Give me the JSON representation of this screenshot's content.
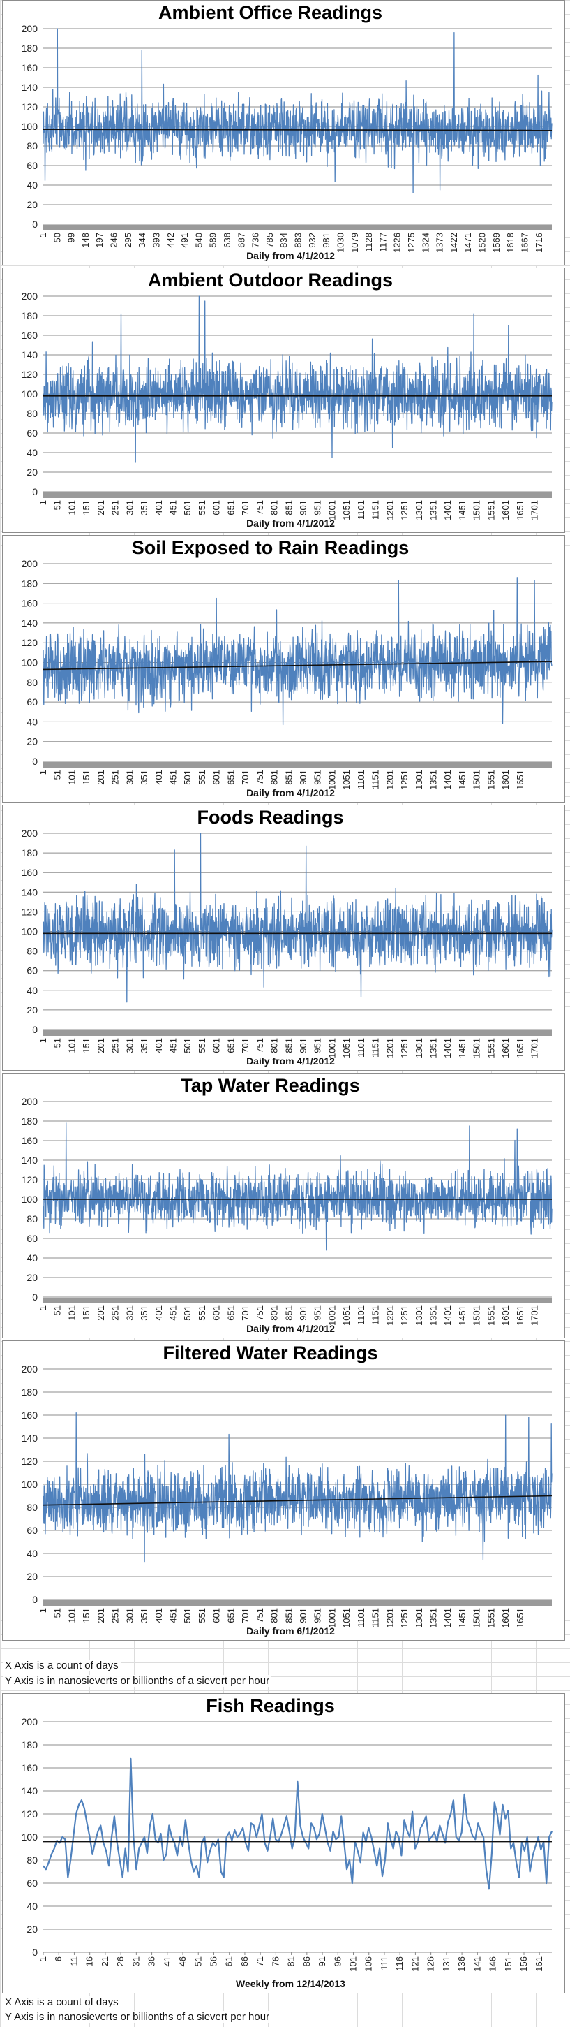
{
  "charts": [
    {
      "type": "line",
      "title": "Ambient Office Readings",
      "xlabel": "Daily from 4/1/2012",
      "ylabel": "",
      "ylim": [
        0,
        200
      ],
      "yticks": [
        0,
        20,
        40,
        60,
        80,
        100,
        120,
        140,
        160,
        180,
        200
      ],
      "xlim": [
        1,
        1760
      ],
      "xtick_start": 1,
      "xtick_step": 49,
      "xtick_end": 1716,
      "series_color": "#4f81bd",
      "trend": [
        97,
        96
      ],
      "baseline": 96,
      "noise_amplitude": 22,
      "spikes": [
        [
          50,
          200
        ],
        [
          342,
          178
        ],
        [
          1422,
          196
        ],
        [
          1280,
          32
        ],
        [
          1373,
          35
        ],
        [
          148,
          55
        ]
      ]
    },
    {
      "type": "line",
      "title": "Ambient Outdoor Readings",
      "xlabel": "Daily from 4/1/2012",
      "ylabel": "",
      "ylim": [
        0,
        200
      ],
      "yticks": [
        0,
        20,
        40,
        60,
        80,
        100,
        120,
        140,
        160,
        180,
        200
      ],
      "xlim": [
        1,
        1760
      ],
      "xtick_start": 1,
      "xtick_step": 50,
      "xtick_end": 1701,
      "series_color": "#4f81bd",
      "trend": [
        98,
        98
      ],
      "baseline": 98,
      "noise_amplitude": 24,
      "spikes": [
        [
          270,
          182
        ],
        [
          540,
          200
        ],
        [
          560,
          195
        ],
        [
          320,
          30
        ],
        [
          1000,
          35
        ],
        [
          1490,
          182
        ],
        [
          1610,
          170
        ]
      ]
    },
    {
      "type": "line",
      "title": "Soil Exposed to Rain Readings",
      "xlabel": "Daily from 4/1/2012",
      "ylabel": "",
      "ylim": [
        0,
        200
      ],
      "yticks": [
        0,
        20,
        40,
        60,
        80,
        100,
        120,
        140,
        160,
        180,
        200
      ],
      "xlim": [
        1,
        1760
      ],
      "xtick_start": 1,
      "xtick_step": 50,
      "xtick_end": 1651,
      "series_color": "#4f81bd",
      "trend": [
        93,
        101
      ],
      "baseline": 96,
      "noise_amplitude": 24,
      "spikes": [
        [
          1640,
          186
        ],
        [
          1700,
          183
        ],
        [
          1230,
          183
        ],
        [
          830,
          37
        ],
        [
          1590,
          38
        ],
        [
          600,
          165
        ]
      ]
    },
    {
      "type": "line",
      "title": "Foods Readings",
      "xlabel": "Daily from 4/1/2012",
      "ylabel": "",
      "ylim": [
        0,
        200
      ],
      "yticks": [
        0,
        20,
        40,
        60,
        80,
        100,
        120,
        140,
        160,
        180,
        200
      ],
      "xlim": [
        1,
        1760
      ],
      "xtick_start": 1,
      "xtick_step": 50,
      "xtick_end": 1701,
      "series_color": "#4f81bd",
      "trend": [
        98,
        98
      ],
      "baseline": 98,
      "noise_amplitude": 24,
      "spikes": [
        [
          545,
          200
        ],
        [
          455,
          183
        ],
        [
          910,
          187
        ],
        [
          290,
          28
        ],
        [
          1100,
          33
        ]
      ]
    },
    {
      "type": "line",
      "title": "Tap Water Readings",
      "xlabel": "Daily from 4/1/2012",
      "ylabel": "",
      "ylim": [
        0,
        200
      ],
      "yticks": [
        0,
        20,
        40,
        60,
        80,
        100,
        120,
        140,
        160,
        180,
        200
      ],
      "xlim": [
        1,
        1760
      ],
      "xtick_start": 1,
      "xtick_step": 50,
      "xtick_end": 1701,
      "series_color": "#4f81bd",
      "trend": [
        100,
        100
      ],
      "baseline": 100,
      "noise_amplitude": 20,
      "spikes": [
        [
          80,
          178
        ],
        [
          1475,
          175
        ],
        [
          1640,
          172
        ],
        [
          980,
          48
        ]
      ]
    },
    {
      "type": "line",
      "title": "Filtered Water Readings",
      "xlabel": "Daily from 6/1/2012",
      "ylabel": "",
      "ylim": [
        0,
        200
      ],
      "yticks": [
        0,
        20,
        40,
        60,
        80,
        100,
        120,
        140,
        160,
        180,
        200
      ],
      "xlim": [
        1,
        1760
      ],
      "xtick_start": 1,
      "xtick_step": 50,
      "xtick_end": 1651,
      "series_color": "#4f81bd",
      "trend": [
        82,
        90
      ],
      "baseline": 85,
      "noise_amplitude": 20,
      "spikes": [
        [
          115,
          162
        ],
        [
          1600,
          160
        ],
        [
          1680,
          158
        ],
        [
          351,
          33
        ]
      ]
    }
  ],
  "notes1": {
    "x_axis": "X Axis is a count of days",
    "y_axis": "Y Axis is in nanosieverts or billionths of a sievert per hour"
  },
  "fish": {
    "type": "line",
    "title": "Fish Readings",
    "xlabel": "Weekly from 12/14/2013",
    "ylabel": "",
    "ylim": [
      0,
      200
    ],
    "yticks": [
      0,
      20,
      40,
      60,
      80,
      100,
      120,
      140,
      160,
      180,
      200
    ],
    "xlim": [
      1,
      165
    ],
    "xtick_start": 1,
    "xtick_step": 5,
    "xtick_end": 161,
    "series_color": "#4f81bd",
    "trend": [
      96,
      96
    ],
    "values": [
      75,
      72,
      78,
      85,
      90,
      97,
      95,
      100,
      98,
      65,
      80,
      100,
      120,
      128,
      132,
      125,
      112,
      100,
      85,
      96,
      105,
      110,
      95,
      88,
      75,
      100,
      118,
      95,
      80,
      65,
      90,
      70,
      168,
      100,
      72,
      90,
      95,
      100,
      86,
      110,
      120,
      98,
      95,
      103,
      80,
      85,
      110,
      100,
      95,
      84,
      100,
      92,
      115,
      96,
      80,
      70,
      75,
      65,
      95,
      100,
      78,
      88,
      95,
      92,
      98,
      70,
      65,
      100,
      104,
      97,
      106,
      100,
      103,
      108,
      95,
      88,
      112,
      110,
      100,
      110,
      120,
      95,
      88,
      100,
      116,
      98,
      96,
      102,
      110,
      118,
      105,
      90,
      100,
      148,
      110,
      100,
      95,
      90,
      112,
      108,
      98,
      103,
      120,
      108,
      95,
      88,
      105,
      98,
      100,
      118,
      96,
      72,
      80,
      60,
      96,
      88,
      78,
      104,
      96,
      108,
      100,
      88,
      75,
      90,
      66,
      80,
      112,
      98,
      90,
      105,
      100,
      84,
      115,
      106,
      100,
      122,
      90,
      96,
      108,
      112,
      118,
      97,
      100,
      104,
      96,
      110,
      103,
      95,
      113,
      120,
      132,
      100,
      97,
      104,
      137,
      115,
      109,
      101,
      98,
      112,
      105,
      100,
      72,
      55,
      85,
      130,
      120,
      102,
      128,
      116,
      123,
      90,
      95,
      78,
      65,
      96,
      88,
      100,
      70,
      84,
      92,
      100,
      89,
      96,
      60,
      100,
      105
    ],
    "x_ticks_note": ""
  },
  "notes2": {
    "x_axis": "X Axis is a count of days",
    "y_axis": "Y Axis is in nanosieverts or billionths of a sievert per hour"
  }
}
